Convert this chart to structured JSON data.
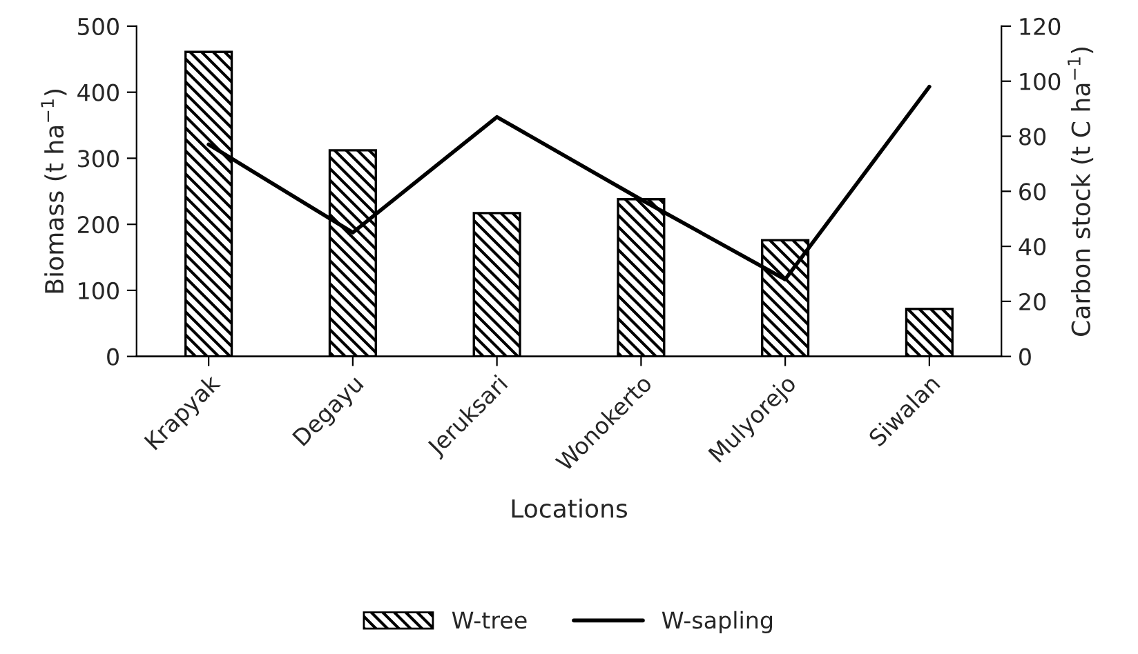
{
  "chart_data": {
    "type": "bar",
    "xlabel": "Locations",
    "ylabel": "Biomass (t ha$^{−1}$)",
    "y2label": "Carbon stock (t C ha$^{−1}$)",
    "categories": [
      "Krapyak",
      "Degayu",
      "Jeruksari",
      "Wonokerto",
      "Mulyorejo",
      "Siwalan"
    ],
    "series": [
      {
        "name": "W-tree",
        "color": "#000000",
        "values": [
          461,
          312,
          217,
          238,
          176,
          72
        ]
      },
      {
        "name": "W-sapling",
        "type": "line",
        "axis": "y2",
        "color": "#000000",
        "values": [
          77,
          45,
          87,
          57,
          28,
          98
        ]
      }
    ],
    "ylim": [
      0,
      500
    ],
    "yticks": [
      0,
      100,
      200,
      300,
      400,
      500
    ],
    "y2lim": [
      0,
      120
    ],
    "y2ticks": [
      0,
      20,
      40,
      60,
      80,
      100,
      120
    ],
    "grid": false,
    "legend": "bottom",
    "marker": "none",
    "line_style": "solid"
  }
}
